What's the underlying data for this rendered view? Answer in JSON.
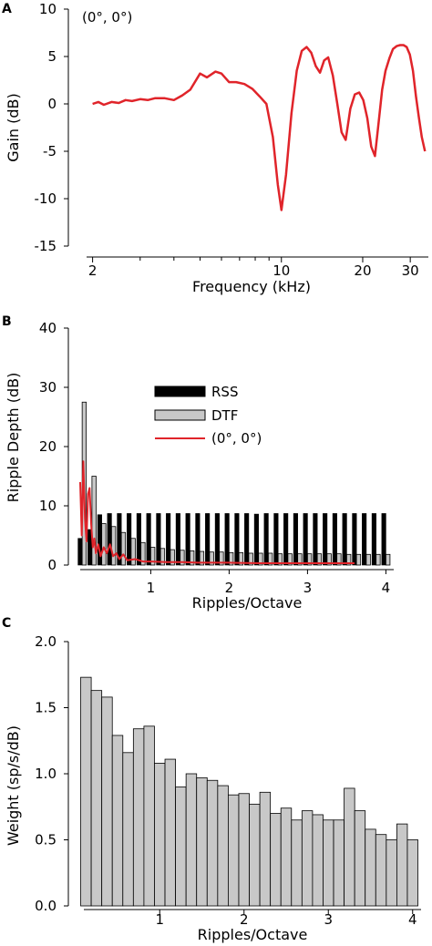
{
  "panels": [
    {
      "letter": "A"
    },
    {
      "letter": "B"
    },
    {
      "letter": "C"
    }
  ],
  "colors": {
    "red": "#e0242a",
    "black": "#000000",
    "gray": "#c8c8c8"
  },
  "chart_data": [
    {
      "type": "line",
      "panel": "A",
      "annotation": "(0°, 0°)",
      "xlabel": "Frequency (kHz)",
      "ylabel": "Gain (dB)",
      "xscale": "log",
      "xlim": [
        1.9,
        35
      ],
      "ylim": [
        -15,
        10
      ],
      "xticks": [
        2,
        10,
        20,
        30
      ],
      "xtick_labels": [
        "2",
        "10",
        "20",
        "30"
      ],
      "yticks": [
        10,
        5,
        0,
        -5,
        -10,
        -15
      ],
      "ytick_labels": [
        "10",
        "5",
        "0",
        "-5",
        "-10",
        "-15"
      ],
      "series": [
        {
          "color": "#e0242a",
          "x": [
            2.0,
            2.1,
            2.2,
            2.35,
            2.5,
            2.65,
            2.8,
            3.0,
            3.2,
            3.4,
            3.7,
            4.0,
            4.3,
            4.6,
            5.0,
            5.3,
            5.7,
            6.0,
            6.4,
            6.8,
            7.3,
            7.8,
            8.3,
            8.8,
            9.3,
            9.7,
            10.0,
            10.4,
            10.9,
            11.4,
            11.9,
            12.4,
            12.9,
            13.4,
            13.9,
            14.4,
            14.9,
            15.5,
            16.1,
            16.7,
            17.3,
            18.0,
            18.7,
            19.4,
            20.1,
            20.8,
            21.5,
            22.2,
            22.9,
            23.6,
            24.3,
            25.1,
            25.9,
            26.7,
            27.5,
            28.3,
            29.1,
            29.9,
            30.7,
            31.5,
            32.3,
            33.1,
            34.0
          ],
          "y": [
            0.0,
            0.2,
            -0.1,
            0.2,
            0.1,
            0.4,
            0.3,
            0.5,
            0.4,
            0.6,
            0.6,
            0.4,
            0.9,
            1.5,
            3.2,
            2.8,
            3.4,
            3.2,
            2.3,
            2.3,
            2.1,
            1.6,
            0.8,
            0.0,
            -3.5,
            -8.5,
            -11.2,
            -7.5,
            -1.0,
            3.5,
            5.6,
            6.0,
            5.4,
            4.0,
            3.3,
            4.6,
            4.9,
            3.0,
            0.0,
            -3.0,
            -3.8,
            -0.5,
            1.0,
            1.2,
            0.4,
            -1.5,
            -4.5,
            -5.5,
            -2.0,
            1.5,
            3.5,
            4.8,
            5.8,
            6.1,
            6.2,
            6.2,
            6.0,
            5.2,
            3.5,
            0.8,
            -1.5,
            -3.5,
            -5.0
          ]
        }
      ]
    },
    {
      "type": "bar",
      "panel": "B",
      "xlabel": "Ripples/Octave",
      "ylabel": "Ripple Depth (dB)",
      "xlim": [
        0.1,
        4.1
      ],
      "ylim": [
        0,
        40
      ],
      "xticks": [
        1,
        2,
        3,
        4
      ],
      "xtick_labels": [
        "1",
        "2",
        "3",
        "4"
      ],
      "yticks": [
        0,
        10,
        20,
        30,
        40
      ],
      "ytick_labels": [
        "0",
        "10",
        "20",
        "30",
        "40"
      ],
      "legend": [
        "RSS",
        "DTF",
        "(0°, 0°)"
      ],
      "legend_position": "upper-center",
      "series": [
        {
          "name": "RSS",
          "color": "#000000",
          "x": [
            0.125,
            0.25,
            0.375,
            0.5,
            0.625,
            0.75,
            0.875,
            1.0,
            1.125,
            1.25,
            1.375,
            1.5,
            1.625,
            1.75,
            1.875,
            2.0,
            2.125,
            2.25,
            2.375,
            2.5,
            2.625,
            2.75,
            2.875,
            3.0,
            3.125,
            3.25,
            3.375,
            3.5,
            3.625,
            3.75,
            3.875,
            4.0
          ],
          "values": [
            4.5,
            6.0,
            8.5,
            8.7,
            8.7,
            8.7,
            8.7,
            8.7,
            8.7,
            8.7,
            8.7,
            8.7,
            8.7,
            8.7,
            8.7,
            8.7,
            8.7,
            8.7,
            8.6,
            8.7,
            8.7,
            8.7,
            8.7,
            8.7,
            8.7,
            8.7,
            8.7,
            8.7,
            8.7,
            8.7,
            8.7,
            8.7
          ]
        },
        {
          "name": "DTF",
          "color": "#c8c8c8",
          "x": [
            0.125,
            0.25,
            0.375,
            0.5,
            0.625,
            0.75,
            0.875,
            1.0,
            1.125,
            1.25,
            1.375,
            1.5,
            1.625,
            1.75,
            1.875,
            2.0,
            2.125,
            2.25,
            2.375,
            2.5,
            2.625,
            2.75,
            2.875,
            3.0,
            3.125,
            3.25,
            3.375,
            3.5,
            3.625,
            3.75,
            3.875,
            4.0
          ],
          "values": [
            27.5,
            15.0,
            7.0,
            6.5,
            5.5,
            4.5,
            3.8,
            3.0,
            2.8,
            2.6,
            2.5,
            2.4,
            2.3,
            2.2,
            2.2,
            2.1,
            2.1,
            2.0,
            2.0,
            2.0,
            1.9,
            1.9,
            1.9,
            1.9,
            1.9,
            1.9,
            1.9,
            1.8,
            1.8,
            1.8,
            1.8,
            1.8
          ]
        },
        {
          "name": "(0°, 0°)",
          "type": "line",
          "color": "#e0242a",
          "x": [
            0.1,
            0.12,
            0.14,
            0.16,
            0.18,
            0.2,
            0.22,
            0.24,
            0.26,
            0.28,
            0.3,
            0.33,
            0.36,
            0.4,
            0.44,
            0.48,
            0.52,
            0.56,
            0.6,
            0.65,
            0.7,
            0.8,
            0.9,
            1.0,
            1.2,
            1.4,
            1.6,
            2.0,
            2.4,
            2.8,
            3.2,
            3.6
          ],
          "values": [
            14.0,
            5.0,
            17.5,
            8.0,
            4.0,
            12.0,
            13.0,
            7.0,
            3.0,
            4.5,
            2.0,
            3.5,
            1.5,
            3.0,
            2.0,
            3.5,
            1.5,
            2.0,
            1.0,
            1.8,
            0.8,
            1.0,
            0.6,
            0.6,
            0.5,
            0.5,
            0.4,
            0.4,
            0.3,
            0.3,
            0.3,
            0.3
          ]
        }
      ]
    },
    {
      "type": "bar",
      "panel": "C",
      "xlabel": "Ripples/Octave",
      "ylabel": "Weight (sp/s/dB)",
      "xlim": [
        0.1,
        4.1
      ],
      "ylim": [
        0.0,
        2.0
      ],
      "xticks": [
        1,
        2,
        3,
        4
      ],
      "xtick_labels": [
        "1",
        "2",
        "3",
        "4"
      ],
      "yticks": [
        0.0,
        0.5,
        1.0,
        1.5,
        2.0
      ],
      "ytick_labels": [
        "0.0",
        "0.5",
        "1.0",
        "1.5",
        "2.0"
      ],
      "series": [
        {
          "color": "#c8c8c8",
          "x": [
            0.125,
            0.25,
            0.375,
            0.5,
            0.625,
            0.75,
            0.875,
            1.0,
            1.125,
            1.25,
            1.375,
            1.5,
            1.625,
            1.75,
            1.875,
            2.0,
            2.125,
            2.25,
            2.375,
            2.5,
            2.625,
            2.75,
            2.875,
            3.0,
            3.125,
            3.25,
            3.375,
            3.5,
            3.625,
            3.75,
            3.875,
            4.0
          ],
          "values": [
            1.73,
            1.63,
            1.58,
            1.29,
            1.16,
            1.34,
            1.36,
            1.08,
            1.11,
            0.9,
            1.0,
            0.97,
            0.95,
            0.91,
            0.84,
            0.85,
            0.77,
            0.86,
            0.7,
            0.74,
            0.65,
            0.72,
            0.69,
            0.65,
            0.65,
            0.89,
            0.72,
            0.58,
            0.54,
            0.5,
            0.62,
            0.5
          ]
        }
      ]
    }
  ]
}
